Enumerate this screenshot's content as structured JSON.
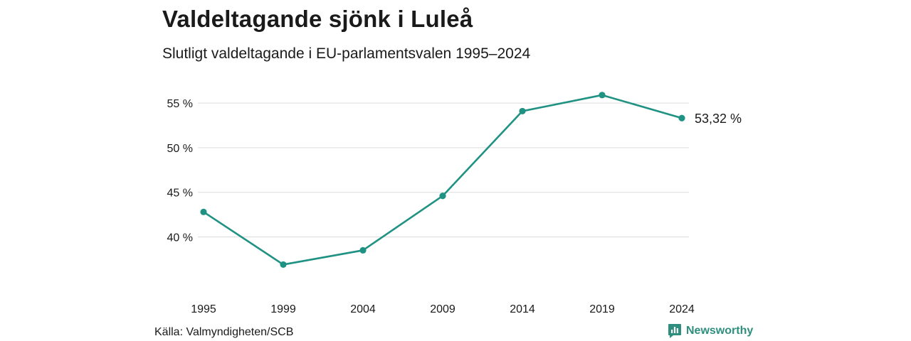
{
  "title": "Valdeltagande sjönk i Luleå",
  "subtitle": "Slutligt valdeltagande i EU-parlamentsvalen 1995–2024",
  "source": "Källa: Valmyndigheten/SCB",
  "brand": "Newsworthy",
  "colors": {
    "line": "#1f9283",
    "grid": "#dddddd",
    "brand": "#2f8f7f"
  },
  "chart_data": {
    "type": "line",
    "x": [
      "1995",
      "1999",
      "2004",
      "2009",
      "2014",
      "2019",
      "2024"
    ],
    "series": [
      {
        "values": [
          42.8,
          36.9,
          38.5,
          44.6,
          54.1,
          55.9,
          53.32
        ]
      }
    ],
    "y_ticks": [
      {
        "value": 40,
        "label": "40 %"
      },
      {
        "value": 45,
        "label": "45 %"
      },
      {
        "value": 50,
        "label": "50 %"
      },
      {
        "value": 55,
        "label": "55 %"
      }
    ],
    "ylim": [
      35.5,
      57
    ],
    "end_label": "53,32 %",
    "grid": "horizontal",
    "legend": "none"
  }
}
